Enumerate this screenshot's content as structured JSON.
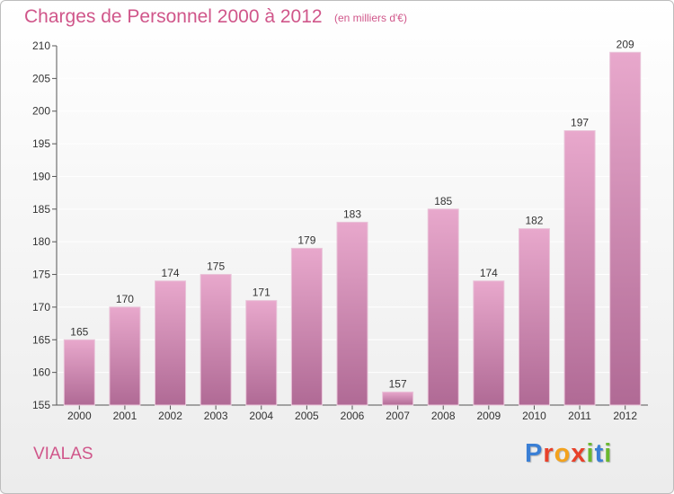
{
  "header": {
    "title": "Charges de Personnel 2000 à 2012",
    "subtitle": "(en milliers d'€)"
  },
  "footer": {
    "commune": "VIALAS",
    "logo_text": "Proxiti",
    "logo_colors": [
      "#3a7fd5",
      "#e8412a",
      "#f3a21d",
      "#e8412a",
      "#6ab82e",
      "#3a7fd5",
      "#6ab82e"
    ]
  },
  "colors": {
    "accent": "#d0568a",
    "bar_top": "#e8a8cc",
    "bar_bottom": "#b06a95",
    "grid": "#ffffff"
  },
  "chart_data": {
    "type": "bar",
    "title": "Charges de Personnel 2000 à 2012",
    "subtitle": "(en milliers d'€)",
    "categories": [
      "2000",
      "2001",
      "2002",
      "2003",
      "2004",
      "2005",
      "2006",
      "2007",
      "2008",
      "2009",
      "2010",
      "2011",
      "2012"
    ],
    "values": [
      165,
      170,
      174,
      175,
      171,
      179,
      183,
      157,
      185,
      174,
      182,
      197,
      209
    ],
    "data_labels": [
      "165",
      "170",
      "174",
      "175",
      "171",
      "179",
      "183",
      "157",
      "185",
      "174",
      "182",
      "197",
      "209"
    ],
    "ylim": [
      155,
      210
    ],
    "yticks": [
      155,
      160,
      165,
      170,
      175,
      180,
      185,
      190,
      195,
      200,
      205,
      210
    ],
    "ytick_labels": [
      "155",
      "160",
      "165",
      "170",
      "175",
      "180",
      "185",
      "190",
      "195",
      "200",
      "205",
      "210"
    ],
    "grid": true,
    "xlabel": "",
    "ylabel": ""
  }
}
